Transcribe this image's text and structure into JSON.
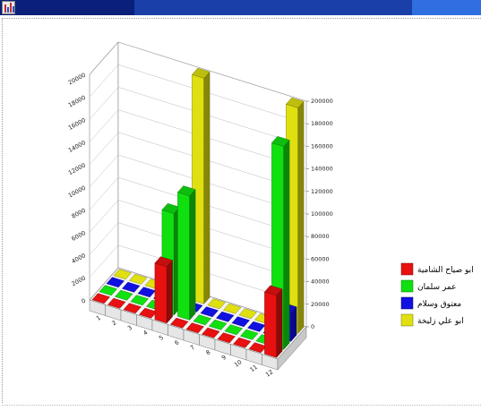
{
  "chart_data": {
    "type": "bar",
    "subtype": "3d-grouped",
    "grid": true,
    "legend_position": "right",
    "left_axis_ticks": [
      "0",
      "2000",
      "4000",
      "6000",
      "8000",
      "10000",
      "12000",
      "14000",
      "16000",
      "18000",
      "20000"
    ],
    "right_axis_ticks": [
      "0",
      "20000",
      "40000",
      "60000",
      "80000",
      "100000",
      "120000",
      "140000",
      "160000",
      "180000",
      "200000"
    ],
    "ylim": [
      0,
      200000
    ],
    "categories": [
      "1",
      "2",
      "3",
      "4",
      "5",
      "6",
      "7",
      "8",
      "9",
      "10",
      "11",
      "12"
    ],
    "series": [
      {
        "name": "ابو صياح الشامية",
        "color": "#e81010",
        "values": [
          0,
          0,
          0,
          0,
          50000,
          0,
          0,
          0,
          0,
          0,
          0,
          55000
        ]
      },
      {
        "name": "عمر سلمان",
        "color": "#10e010",
        "values": [
          0,
          0,
          0,
          0,
          90000,
          110000,
          0,
          0,
          0,
          0,
          0,
          180000
        ]
      },
      {
        "name": "معتوق وسلام",
        "color": "#1010e0",
        "values": [
          0,
          0,
          0,
          0,
          0,
          0,
          0,
          0,
          0,
          0,
          0,
          25000
        ]
      },
      {
        "name": "ابو علي زليخة",
        "color": "#e0e010",
        "values": [
          0,
          0,
          0,
          0,
          0,
          200000,
          0,
          0,
          0,
          0,
          0,
          200000
        ]
      }
    ]
  }
}
